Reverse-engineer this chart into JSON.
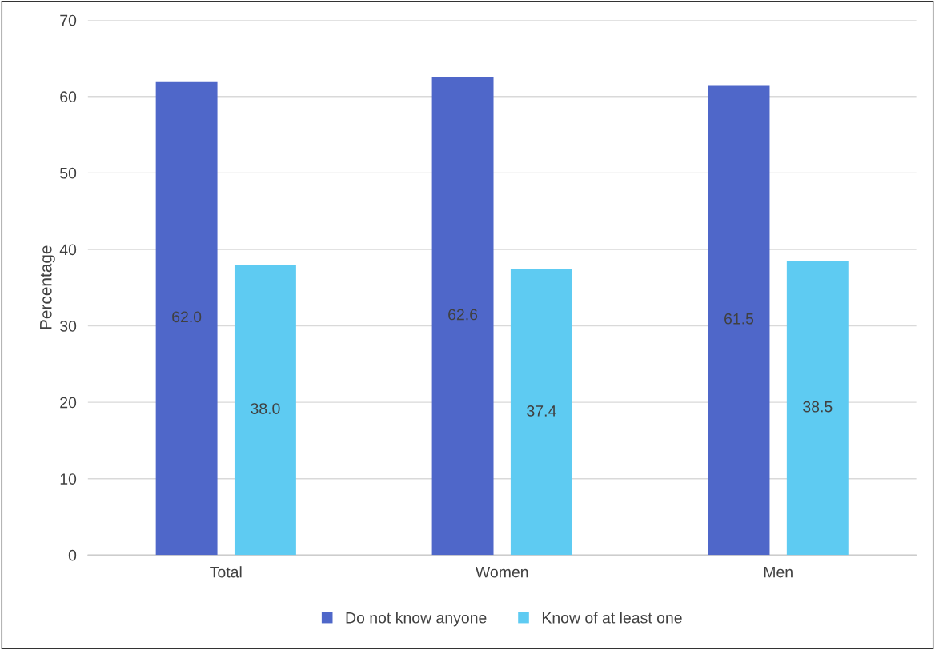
{
  "chart_data": {
    "type": "bar",
    "ylabel": "Percentage",
    "categories": [
      "Total",
      "Women",
      "Men"
    ],
    "series": [
      {
        "name": "Do not know anyone",
        "color": "#4f67c9",
        "values": [
          62.0,
          62.6,
          61.5
        ],
        "value_labels": [
          "62.0",
          "62.6",
          "61.5"
        ]
      },
      {
        "name": "Know of at least one",
        "color": "#5ecbf2",
        "values": [
          38.0,
          37.4,
          38.5
        ],
        "value_labels": [
          "38.0",
          "37.4",
          "38.5"
        ]
      }
    ],
    "ylim": [
      0,
      70
    ],
    "yticks": [
      0,
      10,
      20,
      30,
      40,
      50,
      60,
      70
    ],
    "grid": "y",
    "legend": "bottom"
  }
}
